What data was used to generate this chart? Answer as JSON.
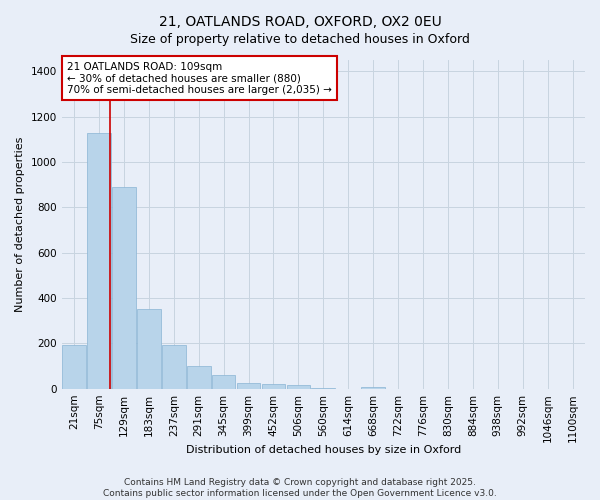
{
  "title": "21, OATLANDS ROAD, OXFORD, OX2 0EU",
  "subtitle": "Size of property relative to detached houses in Oxford",
  "xlabel": "Distribution of detached houses by size in Oxford",
  "ylabel": "Number of detached properties",
  "categories": [
    "21sqm",
    "75sqm",
    "129sqm",
    "183sqm",
    "237sqm",
    "291sqm",
    "345sqm",
    "399sqm",
    "452sqm",
    "506sqm",
    "560sqm",
    "614sqm",
    "668sqm",
    "722sqm",
    "776sqm",
    "830sqm",
    "884sqm",
    "938sqm",
    "992sqm",
    "1046sqm",
    "1100sqm"
  ],
  "values": [
    195,
    1130,
    890,
    350,
    195,
    100,
    60,
    25,
    22,
    15,
    5,
    0,
    8,
    0,
    0,
    0,
    0,
    0,
    0,
    0,
    0
  ],
  "bar_color": "#b8d4ea",
  "bar_edge_color": "#8ab4d4",
  "background_color": "#e8eef8",
  "grid_color": "#c8d4e0",
  "red_line_xindex": 1.42,
  "annotation_text": "21 OATLANDS ROAD: 109sqm\n← 30% of detached houses are smaller (880)\n70% of semi-detached houses are larger (2,035) →",
  "annotation_box_facecolor": "#ffffff",
  "annotation_box_edgecolor": "#cc0000",
  "ylim": [
    0,
    1450
  ],
  "yticks": [
    0,
    200,
    400,
    600,
    800,
    1000,
    1200,
    1400
  ],
  "footer_line1": "Contains HM Land Registry data © Crown copyright and database right 2025.",
  "footer_line2": "Contains public sector information licensed under the Open Government Licence v3.0.",
  "title_fontsize": 10,
  "subtitle_fontsize": 9,
  "axis_label_fontsize": 8,
  "tick_fontsize": 7.5,
  "annotation_fontsize": 7.5,
  "footer_fontsize": 6.5
}
